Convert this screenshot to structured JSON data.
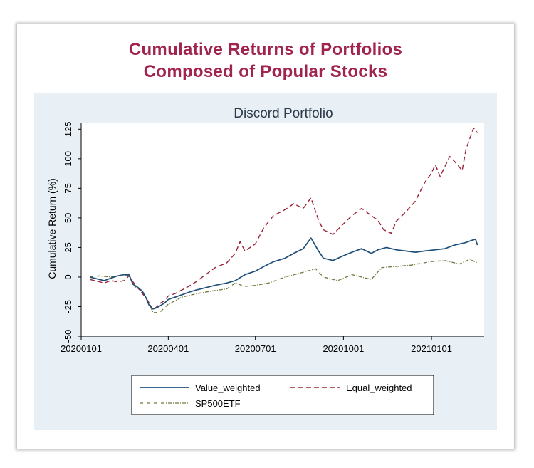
{
  "headline": {
    "line1": "Cumulative Returns of Portfolios",
    "line2": "Composed of Popular Stocks"
  },
  "colors": {
    "headline": "#a0244d",
    "panel_background": "#e8eff5",
    "value_weighted": "#1f4e79",
    "equal_weighted": "#9b2335",
    "sp500etf": "#6b7a3a"
  },
  "chart_data": {
    "type": "line",
    "title": "Discord Portfolio",
    "ylabel": "Cumulative Return (%)",
    "xlabel": "",
    "ylim": [
      -50,
      130
    ],
    "yticks": [
      -50,
      -25,
      0,
      25,
      50,
      75,
      100,
      125
    ],
    "xlim": [
      "2020-01-01",
      "2021-02-25"
    ],
    "xticks": [
      {
        "date": "2020-01-01",
        "label": "20200101"
      },
      {
        "date": "2020-04-01",
        "label": "20200401"
      },
      {
        "date": "2020-07-01",
        "label": "20200701"
      },
      {
        "date": "2020-10-01",
        "label": "20201001"
      },
      {
        "date": "2021-01-01",
        "label": "20210101"
      }
    ],
    "grid": false,
    "legend_position": "bottom",
    "series": [
      {
        "name": "Value_weighted",
        "style": "solid",
        "points": [
          [
            "2020-01-10",
            0
          ],
          [
            "2020-01-15",
            -1
          ],
          [
            "2020-01-20",
            -2
          ],
          [
            "2020-01-25",
            -3
          ],
          [
            "2020-02-01",
            -1
          ],
          [
            "2020-02-08",
            1
          ],
          [
            "2020-02-15",
            2
          ],
          [
            "2020-02-20",
            2
          ],
          [
            "2020-02-24",
            -6
          ],
          [
            "2020-02-28",
            -8
          ],
          [
            "2020-03-05",
            -12
          ],
          [
            "2020-03-09",
            -18
          ],
          [
            "2020-03-12",
            -24
          ],
          [
            "2020-03-16",
            -27
          ],
          [
            "2020-03-20",
            -26
          ],
          [
            "2020-03-24",
            -24
          ],
          [
            "2020-03-28",
            -22
          ],
          [
            "2020-04-01",
            -19
          ],
          [
            "2020-04-08",
            -17
          ],
          [
            "2020-04-15",
            -15
          ],
          [
            "2020-04-22",
            -13
          ],
          [
            "2020-04-30",
            -11
          ],
          [
            "2020-05-10",
            -9
          ],
          [
            "2020-05-20",
            -7
          ],
          [
            "2020-06-01",
            -5
          ],
          [
            "2020-06-10",
            -3
          ],
          [
            "2020-06-20",
            2
          ],
          [
            "2020-07-01",
            5
          ],
          [
            "2020-07-10",
            9
          ],
          [
            "2020-07-20",
            13
          ],
          [
            "2020-08-01",
            16
          ],
          [
            "2020-08-10",
            20
          ],
          [
            "2020-08-20",
            24
          ],
          [
            "2020-08-28",
            33
          ],
          [
            "2020-09-05",
            22
          ],
          [
            "2020-09-10",
            16
          ],
          [
            "2020-09-20",
            14
          ],
          [
            "2020-10-01",
            18
          ],
          [
            "2020-10-10",
            21
          ],
          [
            "2020-10-20",
            24
          ],
          [
            "2020-10-30",
            20
          ],
          [
            "2020-11-06",
            23
          ],
          [
            "2020-11-15",
            25
          ],
          [
            "2020-11-25",
            23
          ],
          [
            "2020-12-05",
            22
          ],
          [
            "2020-12-15",
            21
          ],
          [
            "2020-12-25",
            22
          ],
          [
            "2021-01-05",
            23
          ],
          [
            "2021-01-15",
            24
          ],
          [
            "2021-01-25",
            27
          ],
          [
            "2021-02-05",
            29
          ],
          [
            "2021-02-12",
            31
          ],
          [
            "2021-02-16",
            32
          ],
          [
            "2021-02-18",
            27
          ]
        ]
      },
      {
        "name": "Equal_weighted",
        "style": "dashed",
        "points": [
          [
            "2020-01-10",
            -2
          ],
          [
            "2020-01-15",
            -3
          ],
          [
            "2020-01-20",
            -4
          ],
          [
            "2020-01-25",
            -5
          ],
          [
            "2020-02-01",
            -3
          ],
          [
            "2020-02-08",
            -4
          ],
          [
            "2020-02-15",
            -3
          ],
          [
            "2020-02-20",
            1
          ],
          [
            "2020-02-24",
            -4
          ],
          [
            "2020-02-28",
            -8
          ],
          [
            "2020-03-05",
            -14
          ],
          [
            "2020-03-09",
            -18
          ],
          [
            "2020-03-12",
            -22
          ],
          [
            "2020-03-16",
            -28
          ],
          [
            "2020-03-20",
            -25
          ],
          [
            "2020-03-24",
            -22
          ],
          [
            "2020-03-28",
            -20
          ],
          [
            "2020-04-01",
            -16
          ],
          [
            "2020-04-08",
            -14
          ],
          [
            "2020-04-15",
            -11
          ],
          [
            "2020-04-22",
            -8
          ],
          [
            "2020-04-30",
            -4
          ],
          [
            "2020-05-10",
            2
          ],
          [
            "2020-05-20",
            8
          ],
          [
            "2020-06-01",
            12
          ],
          [
            "2020-06-10",
            20
          ],
          [
            "2020-06-15",
            30
          ],
          [
            "2020-06-20",
            22
          ],
          [
            "2020-07-01",
            28
          ],
          [
            "2020-07-10",
            42
          ],
          [
            "2020-07-20",
            52
          ],
          [
            "2020-08-01",
            57
          ],
          [
            "2020-08-10",
            62
          ],
          [
            "2020-08-20",
            58
          ],
          [
            "2020-08-28",
            67
          ],
          [
            "2020-09-05",
            48
          ],
          [
            "2020-09-10",
            40
          ],
          [
            "2020-09-20",
            36
          ],
          [
            "2020-10-01",
            45
          ],
          [
            "2020-10-10",
            52
          ],
          [
            "2020-10-20",
            58
          ],
          [
            "2020-10-30",
            52
          ],
          [
            "2020-11-06",
            48
          ],
          [
            "2020-11-12",
            40
          ],
          [
            "2020-11-20",
            37
          ],
          [
            "2020-11-25",
            47
          ],
          [
            "2020-12-05",
            55
          ],
          [
            "2020-12-15",
            64
          ],
          [
            "2020-12-20",
            72
          ],
          [
            "2020-12-25",
            80
          ],
          [
            "2021-01-01",
            88
          ],
          [
            "2021-01-05",
            95
          ],
          [
            "2021-01-10",
            85
          ],
          [
            "2021-01-20",
            102
          ],
          [
            "2021-01-28",
            95
          ],
          [
            "2021-02-02",
            90
          ],
          [
            "2021-02-06",
            108
          ],
          [
            "2021-02-10",
            117
          ],
          [
            "2021-02-14",
            126
          ],
          [
            "2021-02-18",
            122
          ]
        ]
      },
      {
        "name": "SP500ETF",
        "style": "dashdot",
        "points": [
          [
            "2020-01-10",
            0
          ],
          [
            "2020-01-20",
            1
          ],
          [
            "2020-02-01",
            0
          ],
          [
            "2020-02-15",
            2
          ],
          [
            "2020-02-20",
            1
          ],
          [
            "2020-02-26",
            -8
          ],
          [
            "2020-03-05",
            -12
          ],
          [
            "2020-03-12",
            -22
          ],
          [
            "2020-03-16",
            -30
          ],
          [
            "2020-03-23",
            -30
          ],
          [
            "2020-04-01",
            -23
          ],
          [
            "2020-04-15",
            -17
          ],
          [
            "2020-05-01",
            -14
          ],
          [
            "2020-05-15",
            -12
          ],
          [
            "2020-06-01",
            -10
          ],
          [
            "2020-06-10",
            -5
          ],
          [
            "2020-06-20",
            -8
          ],
          [
            "2020-07-01",
            -7
          ],
          [
            "2020-07-15",
            -5
          ],
          [
            "2020-08-01",
            0
          ],
          [
            "2020-08-15",
            3
          ],
          [
            "2020-09-02",
            7
          ],
          [
            "2020-09-10",
            0
          ],
          [
            "2020-09-25",
            -3
          ],
          [
            "2020-10-10",
            2
          ],
          [
            "2020-10-30",
            -2
          ],
          [
            "2020-11-10",
            8
          ],
          [
            "2020-11-25",
            9
          ],
          [
            "2020-12-10",
            10
          ],
          [
            "2020-12-31",
            13
          ],
          [
            "2021-01-15",
            14
          ],
          [
            "2021-01-30",
            11
          ],
          [
            "2021-02-10",
            15
          ],
          [
            "2021-02-18",
            12
          ]
        ]
      }
    ]
  }
}
